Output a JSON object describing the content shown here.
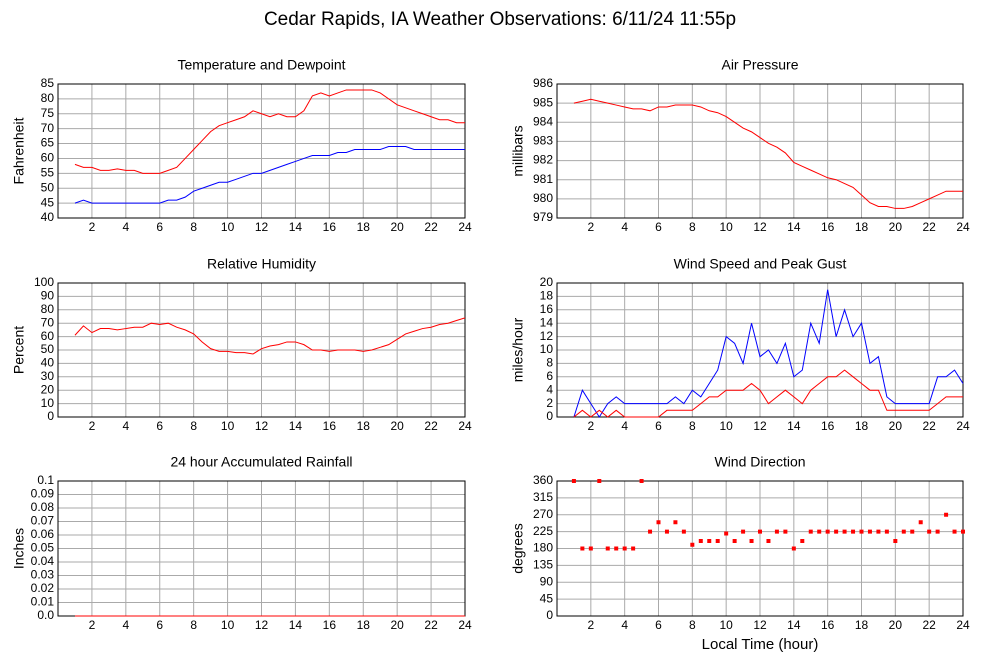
{
  "page_title": "Cedar Rapids, IA Weather Observations: 6/11/24 11:55p",
  "chart_data": [
    {
      "type": "line",
      "title": "Temperature and Dewpoint",
      "y_label": "Fahrenheit",
      "xlim": [
        0,
        24
      ],
      "xticks": [
        2,
        4,
        6,
        8,
        10,
        12,
        14,
        16,
        18,
        20,
        22,
        24
      ],
      "ylim": [
        40,
        85
      ],
      "yticks": [
        40,
        45,
        50,
        55,
        60,
        65,
        70,
        75,
        80,
        85
      ],
      "grid": true,
      "x": [
        1,
        1.5,
        2,
        2.5,
        3,
        3.5,
        4,
        4.5,
        5,
        5.5,
        6,
        6.5,
        7,
        7.5,
        8,
        8.5,
        9,
        9.5,
        10,
        10.5,
        11,
        11.5,
        12,
        12.5,
        13,
        13.5,
        14,
        14.5,
        15,
        15.5,
        16,
        16.5,
        17,
        17.5,
        18,
        18.5,
        19,
        19.5,
        20,
        20.5,
        21,
        21.5,
        22,
        22.5,
        23,
        23.5,
        24
      ],
      "series": [
        {
          "color": "#ff0000",
          "values": [
            58,
            57,
            57,
            56,
            56,
            56.5,
            56,
            56,
            55,
            55,
            55,
            56,
            57,
            60,
            63,
            66,
            69,
            71,
            72,
            73,
            74,
            76,
            75,
            74,
            75,
            74,
            74,
            76,
            81,
            82,
            81,
            82,
            83,
            83,
            83,
            83,
            82,
            80,
            78,
            77,
            76,
            75,
            74,
            73,
            73,
            72,
            72
          ]
        },
        {
          "color": "#0000ff",
          "values": [
            45,
            46,
            45,
            45,
            45,
            45,
            45,
            45,
            45,
            45,
            45,
            46,
            46,
            47,
            49,
            50,
            51,
            52,
            52,
            53,
            54,
            55,
            55,
            56,
            57,
            58,
            59,
            60,
            61,
            61,
            61,
            62,
            62,
            63,
            63,
            63,
            63,
            64,
            64,
            64,
            63,
            63,
            63,
            63,
            63,
            63,
            63
          ]
        }
      ]
    },
    {
      "type": "line",
      "title": "Air Pressure",
      "y_label": "millibars",
      "xlim": [
        0,
        24
      ],
      "xticks": [
        2,
        4,
        6,
        8,
        10,
        12,
        14,
        16,
        18,
        20,
        22,
        24
      ],
      "ylim": [
        979,
        986
      ],
      "yticks": [
        979,
        980,
        981,
        982,
        983,
        984,
        985,
        986
      ],
      "grid": true,
      "x": [
        1,
        1.5,
        2,
        2.5,
        3,
        3.5,
        4,
        4.5,
        5,
        5.5,
        6,
        6.5,
        7,
        7.5,
        8,
        8.5,
        9,
        9.5,
        10,
        10.5,
        11,
        11.5,
        12,
        12.5,
        13,
        13.5,
        14,
        14.5,
        15,
        15.5,
        16,
        16.5,
        17,
        17.5,
        18,
        18.5,
        19,
        19.5,
        20,
        20.5,
        21,
        21.5,
        22,
        22.5,
        23,
        23.5,
        24
      ],
      "series": [
        {
          "color": "#ff0000",
          "values": [
            985.0,
            985.1,
            985.2,
            985.1,
            985.0,
            984.9,
            984.8,
            984.7,
            984.7,
            984.6,
            984.8,
            984.8,
            984.9,
            984.9,
            984.9,
            984.8,
            984.6,
            984.5,
            984.3,
            984.0,
            983.7,
            983.5,
            983.2,
            982.9,
            982.7,
            982.4,
            981.9,
            981.7,
            981.5,
            981.3,
            981.1,
            981.0,
            980.8,
            980.6,
            980.2,
            979.8,
            979.6,
            979.6,
            979.5,
            979.5,
            979.6,
            979.8,
            980.0,
            980.2,
            980.4,
            980.4,
            980.4
          ]
        }
      ]
    },
    {
      "type": "line",
      "title": "Relative Humidity",
      "y_label": "Percent",
      "xlim": [
        0,
        24
      ],
      "xticks": [
        2,
        4,
        6,
        8,
        10,
        12,
        14,
        16,
        18,
        20,
        22,
        24
      ],
      "ylim": [
        0,
        100
      ],
      "yticks": [
        0,
        10,
        20,
        30,
        40,
        50,
        60,
        70,
        80,
        90,
        100
      ],
      "grid": true,
      "x": [
        1,
        1.5,
        2,
        2.5,
        3,
        3.5,
        4,
        4.5,
        5,
        5.5,
        6,
        6.5,
        7,
        7.5,
        8,
        8.5,
        9,
        9.5,
        10,
        10.5,
        11,
        11.5,
        12,
        12.5,
        13,
        13.5,
        14,
        14.5,
        15,
        15.5,
        16,
        16.5,
        17,
        17.5,
        18,
        18.5,
        19,
        19.5,
        20,
        20.5,
        21,
        21.5,
        22,
        22.5,
        23,
        23.5,
        24
      ],
      "series": [
        {
          "color": "#ff0000",
          "values": [
            61,
            68,
            63,
            66,
            66,
            65,
            66,
            67,
            67,
            70,
            69,
            70,
            67,
            65,
            62,
            56,
            51,
            49,
            49,
            48,
            48,
            47,
            51,
            53,
            54,
            56,
            56,
            54,
            50,
            50,
            49,
            50,
            50,
            50,
            49,
            50,
            52,
            54,
            58,
            62,
            64,
            66,
            67,
            69,
            70,
            72,
            74
          ]
        }
      ]
    },
    {
      "type": "line",
      "title": "Wind Speed and Peak Gust",
      "y_label": "miles/hour",
      "xlim": [
        0,
        24
      ],
      "xticks": [
        2,
        4,
        6,
        8,
        10,
        12,
        14,
        16,
        18,
        20,
        22,
        24
      ],
      "ylim": [
        0,
        20
      ],
      "yticks": [
        0,
        2,
        4,
        6,
        8,
        10,
        12,
        14,
        16,
        18,
        20
      ],
      "grid": true,
      "x": [
        1,
        1.5,
        2,
        2.5,
        3,
        3.5,
        4,
        4.5,
        5,
        5.5,
        6,
        6.5,
        7,
        7.5,
        8,
        8.5,
        9,
        9.5,
        10,
        10.5,
        11,
        11.5,
        12,
        12.5,
        13,
        13.5,
        14,
        14.5,
        15,
        15.5,
        16,
        16.5,
        17,
        17.5,
        18,
        18.5,
        19,
        19.5,
        20,
        20.5,
        21,
        21.5,
        22,
        22.5,
        23,
        23.5,
        24
      ],
      "series": [
        {
          "color": "#0000ff",
          "values": [
            0,
            4,
            2,
            0,
            2,
            3,
            2,
            2,
            2,
            2,
            2,
            2,
            3,
            2,
            4,
            3,
            5,
            7,
            12,
            11,
            8,
            14,
            9,
            10,
            8,
            11,
            6,
            7,
            14,
            11,
            19,
            12,
            16,
            12,
            14,
            8,
            9,
            3,
            2,
            2,
            2,
            2,
            2,
            6,
            6,
            7,
            5
          ]
        },
        {
          "color": "#ff0000",
          "values": [
            0,
            1,
            0,
            1,
            0,
            1,
            0,
            0,
            0,
            0,
            0,
            1,
            1,
            1,
            1,
            2,
            3,
            3,
            4,
            4,
            4,
            5,
            4,
            2,
            3,
            4,
            3,
            2,
            4,
            5,
            6,
            6,
            7,
            6,
            5,
            4,
            4,
            1,
            1,
            1,
            1,
            1,
            1,
            2,
            3,
            3,
            3
          ]
        }
      ]
    },
    {
      "type": "line",
      "title": "24 hour Accumulated Rainfall",
      "y_label": "Inches",
      "xlim": [
        0,
        24
      ],
      "xticks": [
        2,
        4,
        6,
        8,
        10,
        12,
        14,
        16,
        18,
        20,
        22,
        24
      ],
      "ylim": [
        0,
        0.1
      ],
      "yticks": [
        {
          "value": 0,
          "label": "0.0"
        },
        0.01,
        0.02,
        0.03,
        0.04,
        0.05,
        0.06,
        0.07,
        0.08,
        0.09,
        0.1
      ],
      "grid": true,
      "x": [
        1,
        24
      ],
      "series": [
        {
          "color": "#ff0000",
          "values": [
            0,
            0
          ]
        }
      ]
    },
    {
      "type": "scatter",
      "title": "Wind Direction",
      "y_label": "degrees",
      "x_label": "Local Time (hour)",
      "xlim": [
        0,
        24
      ],
      "xticks": [
        2,
        4,
        6,
        8,
        10,
        12,
        14,
        16,
        18,
        20,
        22,
        24
      ],
      "ylim": [
        0,
        360
      ],
      "yticks": [
        0,
        45,
        90,
        135,
        180,
        225,
        270,
        315,
        360
      ],
      "grid": true,
      "x": [
        1,
        1.5,
        2,
        2.5,
        3,
        3.5,
        4,
        4.5,
        5,
        5.5,
        6,
        6.5,
        7,
        7.5,
        8,
        8.5,
        9,
        9.5,
        10,
        10.5,
        11,
        11.5,
        12,
        12.5,
        13,
        13.5,
        14,
        14.5,
        15,
        15.5,
        16,
        16.5,
        17,
        17.5,
        18,
        18.5,
        19,
        19.5,
        20,
        20.5,
        21,
        21.5,
        22,
        22.5,
        23,
        23.5,
        24
      ],
      "series": [
        {
          "color": "#ff0000",
          "values": [
            360,
            180,
            180,
            360,
            180,
            180,
            180,
            180,
            360,
            225,
            250,
            225,
            250,
            225,
            190,
            200,
            200,
            200,
            220,
            200,
            225,
            200,
            225,
            200,
            225,
            225,
            180,
            200,
            225,
            225,
            225,
            225,
            225,
            225,
            225,
            225,
            225,
            225,
            200,
            225,
            225,
            250,
            225,
            225,
            270,
            225,
            225
          ]
        }
      ]
    }
  ]
}
